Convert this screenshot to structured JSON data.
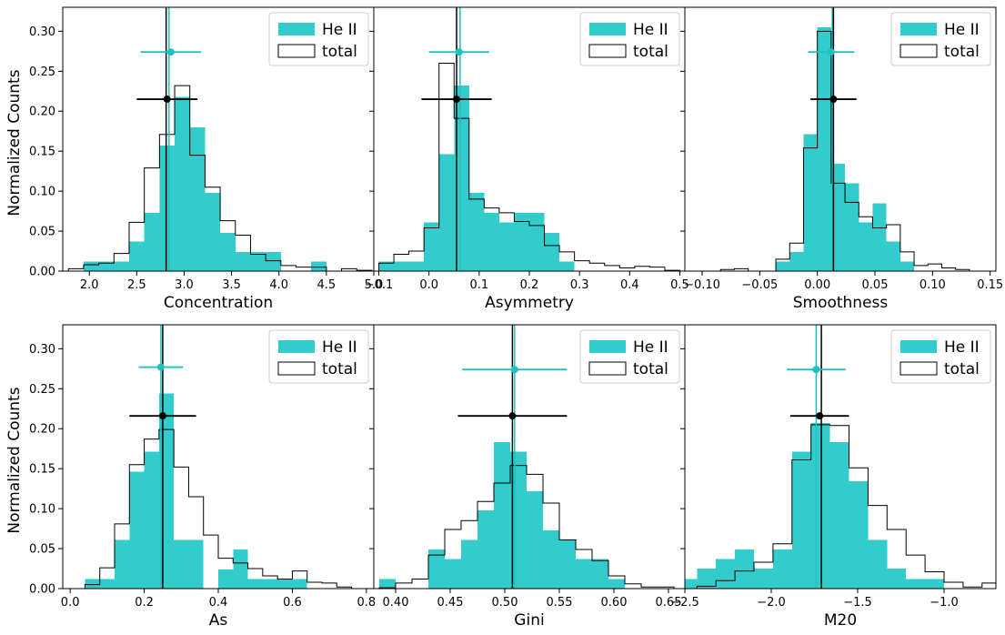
{
  "chart_data": {
    "type": "histogram-grid",
    "ylabel": "Normalized Counts",
    "legend": {
      "series": [
        "He II",
        "total"
      ],
      "placement": "top-right"
    },
    "colors": {
      "heii": "#33CCCC",
      "total": "#000000",
      "heii_line": "#1FC0C0"
    },
    "ylim": [
      0,
      0.33
    ],
    "yticks": [
      0.0,
      0.05,
      0.1,
      0.15,
      0.2,
      0.25,
      0.3
    ],
    "ytick_labels": [
      "0.00",
      "0.05",
      "0.10",
      "0.15",
      "0.20",
      "0.25",
      "0.30"
    ],
    "panels": [
      {
        "name": "concentration",
        "xlabel": "Concentration",
        "xlim": [
          1.72,
          5.0
        ],
        "xticks": [
          2.0,
          2.5,
          3.0,
          3.5,
          4.0,
          4.5,
          5.0
        ],
        "xtick_labels": [
          "2.0",
          "2.5",
          "3.0",
          "3.5",
          "4.0",
          "4.5",
          "5.0"
        ],
        "bin_edges": [
          1.78,
          1.94,
          2.1,
          2.26,
          2.42,
          2.58,
          2.74,
          2.9,
          3.06,
          3.22,
          3.38,
          3.54,
          3.7,
          3.86,
          4.02,
          4.18,
          4.34,
          4.5,
          4.66,
          4.82,
          4.98
        ],
        "heii": [
          0.0,
          0.012,
          0.012,
          0.012,
          0.037,
          0.073,
          0.157,
          0.218,
          0.18,
          0.098,
          0.048,
          0.024,
          0.024,
          0.024,
          0.0,
          0.0,
          0.012,
          0.0,
          0.0,
          0.0
        ],
        "total": [
          0.003,
          0.008,
          0.01,
          0.022,
          0.061,
          0.129,
          0.171,
          0.232,
          0.145,
          0.105,
          0.063,
          0.045,
          0.021,
          0.013,
          0.007,
          0.005,
          0.005,
          0.0,
          0.003,
          0.001
        ],
        "heii_point": {
          "x": 2.86,
          "y": 0.274,
          "xerr": 0.32,
          "median": 2.84
        },
        "total_point": {
          "x": 2.82,
          "y": 0.215,
          "xerr": 0.32,
          "median": 2.81
        }
      },
      {
        "name": "asymmetry",
        "xlabel": "Asymmetry",
        "xlim": [
          -0.11,
          0.51
        ],
        "xticks": [
          -0.1,
          0.0,
          0.1,
          0.2,
          0.3,
          0.4,
          0.5
        ],
        "xtick_labels": [
          "−0.1",
          "0.0",
          "0.1",
          "0.2",
          "0.3",
          "0.4",
          "0.5"
        ],
        "bin_edges": [
          -0.1,
          -0.07,
          -0.04,
          -0.01,
          0.02,
          0.05,
          0.08,
          0.11,
          0.14,
          0.17,
          0.2,
          0.23,
          0.26,
          0.29,
          0.32,
          0.35,
          0.38,
          0.41,
          0.44,
          0.47,
          0.5
        ],
        "heii": [
          0.012,
          0.012,
          0.012,
          0.061,
          0.146,
          0.232,
          0.098,
          0.073,
          0.061,
          0.073,
          0.073,
          0.048,
          0.012,
          0.0,
          0.0,
          0.0,
          0.0,
          0.0,
          0.0,
          0.0
        ],
        "total": [
          0.01,
          0.021,
          0.025,
          0.054,
          0.26,
          0.191,
          0.09,
          0.079,
          0.073,
          0.062,
          0.057,
          0.032,
          0.024,
          0.013,
          0.01,
          0.007,
          0.004,
          0.006,
          0.005,
          0.001
        ],
        "heii_point": {
          "x": 0.06,
          "y": 0.274,
          "xerr": 0.06,
          "median": 0.062
        },
        "total_point": {
          "x": 0.055,
          "y": 0.215,
          "xerr": 0.07,
          "median": 0.055
        }
      },
      {
        "name": "smoothness",
        "xlabel": "Smoothness",
        "xlim": [
          -0.115,
          0.155
        ],
        "xticks": [
          -0.1,
          -0.05,
          0.0,
          0.05,
          0.1,
          0.15
        ],
        "xtick_labels": [
          "−0.10",
          "−0.05",
          "0.00",
          "0.05",
          "0.10",
          "0.15"
        ],
        "bin_edges": [
          -0.12,
          -0.108,
          -0.096,
          -0.084,
          -0.072,
          -0.06,
          -0.048,
          -0.036,
          -0.024,
          -0.012,
          0.0,
          0.012,
          0.024,
          0.036,
          0.048,
          0.06,
          0.072,
          0.084,
          0.096,
          0.108,
          0.12,
          0.132
        ],
        "heii": [
          0.0,
          0.0,
          0.0,
          0.0,
          0.0,
          0.0,
          0.0,
          0.012,
          0.024,
          0.171,
          0.305,
          0.134,
          0.11,
          0.061,
          0.085,
          0.037,
          0.012,
          0.0,
          0.0,
          0.0,
          0.0,
          0.0
        ],
        "total": [
          0.0,
          0.0,
          0.0,
          0.002,
          0.003,
          0.0,
          0.0,
          0.015,
          0.035,
          0.154,
          0.3,
          0.11,
          0.086,
          0.068,
          0.054,
          0.058,
          0.024,
          0.007,
          0.009,
          0.004,
          0.002,
          0.0
        ],
        "heii_point": {
          "x": 0.012,
          "y": 0.274,
          "xerr": 0.02,
          "median": 0.013
        },
        "total_point": {
          "x": 0.014,
          "y": 0.215,
          "xerr": 0.02,
          "median": 0.014
        }
      },
      {
        "name": "as",
        "xlabel": "As",
        "xlim": [
          -0.02,
          0.82
        ],
        "xticks": [
          0.0,
          0.2,
          0.4,
          0.6,
          0.8
        ],
        "xtick_labels": [
          "0.0",
          "0.2",
          "0.4",
          "0.6",
          "0.8"
        ],
        "bin_edges": [
          0.04,
          0.08,
          0.12,
          0.16,
          0.2,
          0.24,
          0.28,
          0.32,
          0.36,
          0.4,
          0.44,
          0.48,
          0.52,
          0.56,
          0.6,
          0.64,
          0.68,
          0.72,
          0.76
        ],
        "heii": [
          0.012,
          0.012,
          0.061,
          0.146,
          0.171,
          0.244,
          0.061,
          0.061,
          0.0,
          0.024,
          0.049,
          0.012,
          0.012,
          0.012,
          0.012,
          0.0,
          0.0,
          0.0
        ],
        "total": [
          0.005,
          0.026,
          0.081,
          0.155,
          0.187,
          0.199,
          0.152,
          0.115,
          0.067,
          0.038,
          0.032,
          0.025,
          0.016,
          0.012,
          0.022,
          0.008,
          0.007,
          0.002
        ],
        "heii_point": {
          "x": 0.245,
          "y": 0.277,
          "xerr": 0.06,
          "median": 0.245
        },
        "total_point": {
          "x": 0.25,
          "y": 0.216,
          "xerr": 0.09,
          "median": 0.25
        }
      },
      {
        "name": "gini",
        "xlabel": "Gini",
        "xlim": [
          0.38,
          0.665
        ],
        "xticks": [
          0.4,
          0.45,
          0.5,
          0.55,
          0.6,
          0.65
        ],
        "xtick_labels": [
          "0.40",
          "0.45",
          "0.50",
          "0.55",
          "0.60",
          "0.65"
        ],
        "bin_edges": [
          0.385,
          0.4,
          0.415,
          0.43,
          0.445,
          0.46,
          0.475,
          0.49,
          0.505,
          0.52,
          0.535,
          0.55,
          0.565,
          0.58,
          0.595,
          0.61,
          0.625,
          0.64,
          0.655
        ],
        "heii": [
          0.012,
          0.0,
          0.0,
          0.049,
          0.037,
          0.061,
          0.098,
          0.183,
          0.171,
          0.122,
          0.073,
          0.061,
          0.037,
          0.037,
          0.012,
          0.0,
          0.0,
          0.0
        ],
        "total": [
          0.001,
          0.007,
          0.012,
          0.042,
          0.074,
          0.085,
          0.109,
          0.132,
          0.154,
          0.143,
          0.107,
          0.061,
          0.049,
          0.035,
          0.016,
          0.006,
          0.002,
          0.002
        ],
        "heii_point": {
          "x": 0.509,
          "y": 0.274,
          "xerr": 0.048,
          "median": 0.509
        },
        "total_point": {
          "x": 0.507,
          "y": 0.216,
          "xerr": 0.05,
          "median": 0.507
        }
      },
      {
        "name": "m20",
        "xlabel": "M20",
        "xlim": [
          -2.5,
          -0.7
        ],
        "xticks": [
          -2.5,
          -2.0,
          -1.5,
          -1.0
        ],
        "xtick_labels": [
          "−2.5",
          "−2.0",
          "−1.5",
          "−1.0"
        ],
        "bin_edges": [
          -2.54,
          -2.43,
          -2.32,
          -2.21,
          -2.1,
          -1.99,
          -1.88,
          -1.77,
          -1.66,
          -1.55,
          -1.44,
          -1.33,
          -1.22,
          -1.11,
          -1.0,
          -0.89,
          -0.78,
          -0.67
        ],
        "heii": [
          0.012,
          0.025,
          0.037,
          0.049,
          0.025,
          0.049,
          0.171,
          0.207,
          0.183,
          0.134,
          0.061,
          0.025,
          0.012,
          0.012,
          0.0,
          0.0,
          0.0
        ],
        "total": [
          0.0,
          0.003,
          0.01,
          0.022,
          0.033,
          0.056,
          0.161,
          0.205,
          0.204,
          0.151,
          0.104,
          0.074,
          0.042,
          0.021,
          0.008,
          0.002,
          0.007
        ],
        "heii_point": {
          "x": -1.74,
          "y": 0.274,
          "xerr": 0.17,
          "median": -1.74
        },
        "total_point": {
          "x": -1.72,
          "y": 0.216,
          "xerr": 0.17,
          "median": -1.71
        }
      }
    ]
  }
}
